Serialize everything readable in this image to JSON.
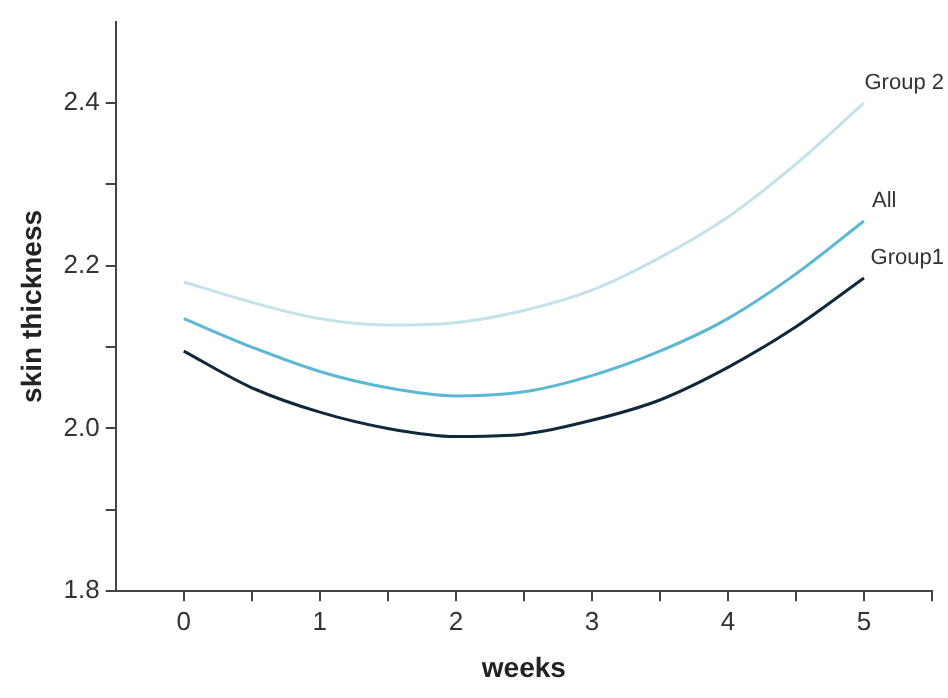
{
  "chart_data": {
    "type": "line",
    "xlabel": "weeks",
    "ylabel": "skin thickness",
    "marker": "none",
    "line_style": "solid",
    "grid": false,
    "legend": false,
    "x": [
      0,
      0.5,
      1,
      1.5,
      2,
      2.5,
      3,
      3.5,
      4,
      4.5,
      5
    ],
    "series": [
      {
        "name": "Group 2",
        "color": "#c4e2ea",
        "values": [
          2.18,
          2.155,
          2.135,
          2.127,
          2.13,
          2.145,
          2.17,
          2.21,
          2.26,
          2.325,
          2.4
        ]
      },
      {
        "name": "All",
        "color": "#5bb8d4",
        "values": [
          2.135,
          2.1,
          2.07,
          2.05,
          2.04,
          2.045,
          2.065,
          2.095,
          2.135,
          2.19,
          2.255
        ]
      },
      {
        "name": "Group1",
        "color": "#10293a",
        "values": [
          2.095,
          2.05,
          2.02,
          2.0,
          1.99,
          1.993,
          2.01,
          2.035,
          2.075,
          2.125,
          2.185
        ]
      }
    ],
    "xlim": [
      -0.5,
      5.5
    ],
    "xticks": [
      0,
      {
        "value": 0.5,
        "label": null
      },
      1,
      {
        "value": 1.5,
        "label": null
      },
      2,
      {
        "value": 2.5,
        "label": null
      },
      3,
      {
        "value": 3.5,
        "label": null
      },
      4,
      {
        "value": 4.5,
        "label": null
      },
      5,
      {
        "value": 5.5,
        "label": null
      }
    ],
    "ylim": [
      1.8,
      2.5
    ],
    "yticks": [
      {
        "value": 1.8,
        "label": "1.8"
      },
      {
        "value": 1.9,
        "label": null
      },
      {
        "value": 2,
        "label": "2.0"
      },
      {
        "value": 2.1,
        "label": null
      },
      {
        "value": 2.2,
        "label": "2.2"
      },
      {
        "value": 2.3,
        "label": null
      },
      {
        "value": 2.4,
        "label": "2.4"
      }
    ]
  }
}
